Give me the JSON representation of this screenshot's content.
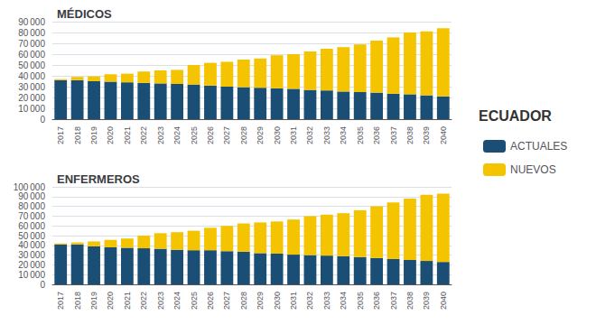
{
  "chart_data": [
    {
      "type": "bar",
      "title": "MÉDICOS",
      "stacked": true,
      "grid": true,
      "legend": "right",
      "annotations": [
        "ECUADOR"
      ],
      "categories": [
        "2017",
        "2018",
        "2019",
        "2020",
        "2021",
        "2022",
        "2023",
        "2024",
        "2025",
        "2026",
        "2027",
        "2028",
        "2029",
        "2030",
        "2031",
        "2032",
        "2033",
        "2034",
        "2035",
        "2036",
        "2037",
        "2038",
        "2039",
        "2040"
      ],
      "series": [
        {
          "name": "ACTUALES",
          "color": "#1a4e75",
          "values": [
            36000,
            36000,
            35000,
            34500,
            34000,
            33500,
            33000,
            32500,
            32000,
            31000,
            30000,
            29500,
            29000,
            28500,
            28000,
            27000,
            26500,
            25500,
            25000,
            24500,
            23500,
            23000,
            22000,
            21000
          ]
        },
        {
          "name": "NUEVOS",
          "color": "#f5c400",
          "values": [
            1000,
            3000,
            4500,
            7000,
            8000,
            10500,
            12000,
            13000,
            18000,
            21000,
            23000,
            25500,
            27000,
            30500,
            32000,
            35500,
            38500,
            41000,
            44000,
            48000,
            52000,
            57000,
            59000,
            63000
          ]
        }
      ],
      "ylim": [
        0,
        90000
      ],
      "yticks": [
        0,
        {
          "value": 10000,
          "label": "10 000"
        },
        {
          "value": 20000,
          "label": "20 000"
        },
        {
          "value": 30000,
          "label": "30 000"
        },
        {
          "value": 40000,
          "label": "40 000"
        },
        {
          "value": 50000,
          "label": "50 000"
        },
        {
          "value": 60000,
          "label": "60 000"
        },
        {
          "value": 70000,
          "label": "70 000"
        },
        {
          "value": 80000,
          "label": "80 000"
        },
        {
          "value": 90000,
          "label": "90 000"
        }
      ]
    },
    {
      "type": "bar",
      "title": "ENFERMEROS",
      "stacked": true,
      "grid": true,
      "legend": "right",
      "categories": [
        "2017",
        "2018",
        "2019",
        "2020",
        "2021",
        "2022",
        "2023",
        "2024",
        "2025",
        "2026",
        "2027",
        "2028",
        "2029",
        "2030",
        "2031",
        "2032",
        "2033",
        "2034",
        "2035",
        "2036",
        "2037",
        "2038",
        "2039",
        "2040"
      ],
      "series": [
        {
          "name": "ACTUALES",
          "color": "#1a4e75",
          "values": [
            41000,
            41000,
            39000,
            38000,
            37500,
            37000,
            36500,
            35500,
            35000,
            35000,
            34000,
            33500,
            32000,
            31500,
            30500,
            30000,
            29500,
            29000,
            28000,
            27000,
            26000,
            25000,
            24000,
            23000
          ]
        },
        {
          "name": "NUEVOS",
          "color": "#f5c400",
          "values": [
            1000,
            2000,
            5000,
            7500,
            9500,
            13000,
            16000,
            18000,
            20000,
            23000,
            26000,
            29000,
            31500,
            33000,
            36000,
            40000,
            42000,
            44000,
            48000,
            53000,
            58000,
            63000,
            68000,
            70000
          ]
        }
      ],
      "ylim": [
        0,
        100000
      ],
      "yticks": [
        0,
        {
          "value": 10000,
          "label": "10 000"
        },
        {
          "value": 20000,
          "label": "20 000"
        },
        {
          "value": 30000,
          "label": "30 000"
        },
        {
          "value": 40000,
          "label": "40 000"
        },
        {
          "value": 50000,
          "label": "50 000"
        },
        {
          "value": 60000,
          "label": "60 000"
        },
        {
          "value": 70000,
          "label": "70 000"
        },
        {
          "value": 80000,
          "label": "80 000"
        },
        {
          "value": 90000,
          "label": "90 000"
        },
        {
          "value": 100000,
          "label": "100 000"
        }
      ]
    }
  ]
}
